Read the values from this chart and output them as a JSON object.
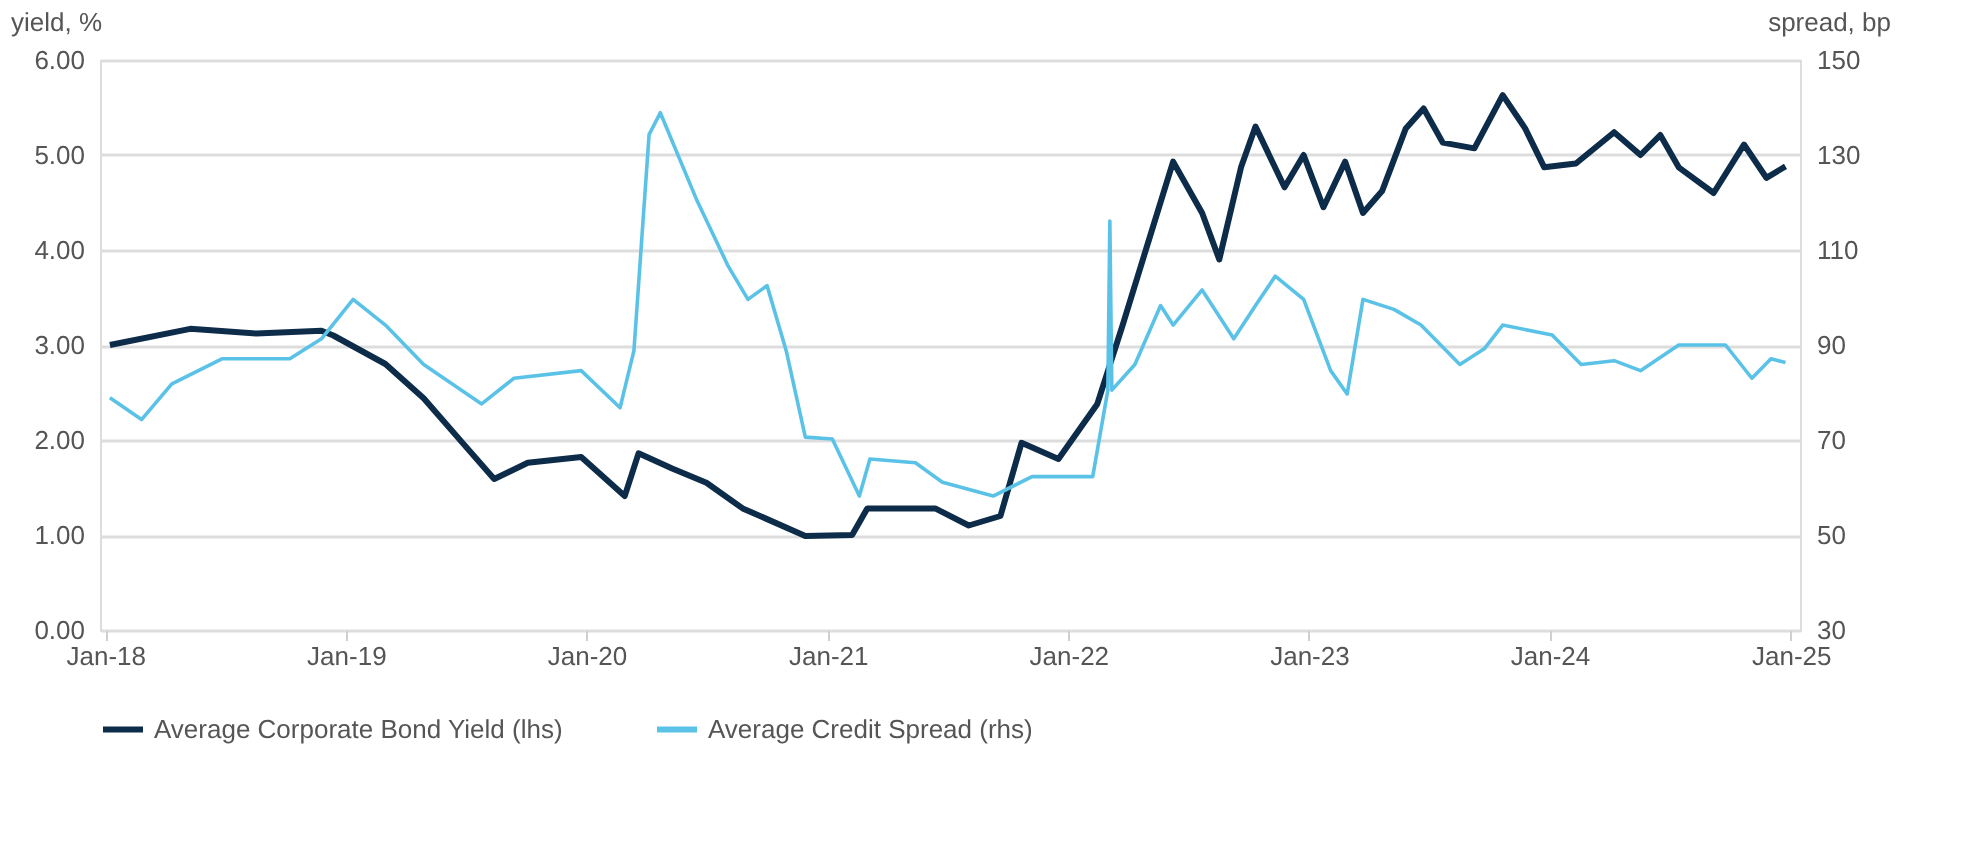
{
  "chart_data": {
    "type": "line",
    "ylabel": "yield, %",
    "y2label": "spread, bp",
    "xlim": [
      "2017-12-24",
      "2025-01-15"
    ],
    "xticks": [
      {
        "value": "2018-01-01",
        "label": "Jan-18"
      },
      {
        "value": "2019-01-01",
        "label": "Jan-19"
      },
      {
        "value": "2020-01-01",
        "label": "Jan-20"
      },
      {
        "value": "2021-01-01",
        "label": "Jan-21"
      },
      {
        "value": "2022-01-01",
        "label": "Jan-22"
      },
      {
        "value": "2023-01-01",
        "label": "Jan-23"
      },
      {
        "value": "2024-01-01",
        "label": "Jan-24"
      },
      {
        "value": "2025-01-01",
        "label": "Jan-25"
      }
    ],
    "ylim": [
      0,
      6
    ],
    "yticks": [
      {
        "value": 0,
        "label": "0.00"
      },
      {
        "value": 1,
        "label": "1.00"
      },
      {
        "value": 2,
        "label": "2.00"
      },
      {
        "value": 3,
        "label": "3.00"
      },
      {
        "value": 4,
        "label": "4.00"
      },
      {
        "value": 5,
        "label": "5.00"
      },
      {
        "value": 6,
        "label": "6.00"
      }
    ],
    "y2lim": [
      30,
      150
    ],
    "y2ticks": [
      30,
      50,
      70,
      90,
      110,
      130,
      150
    ],
    "grid": "y",
    "legend": "bottom",
    "line_style": "solid",
    "marker": "none",
    "series": [
      {
        "name": "Average Corporate Bond Yield (lhs)",
        "color": "#0d2c4a",
        "axis": "y",
        "x": [
          "2018-01-08",
          "2018-05-10",
          "2018-08-18",
          "2018-11-25",
          "2018-12-13",
          "2019-03-02",
          "2019-04-29",
          "2019-06-27",
          "2019-08-14",
          "2019-10-04",
          "2019-12-24",
          "2020-02-28",
          "2020-03-20",
          "2020-05-10",
          "2020-07-01",
          "2020-08-25",
          "2020-11-28",
          "2021-02-07",
          "2021-03-02",
          "2021-06-13",
          "2021-08-03",
          "2021-09-20",
          "2021-10-22",
          "2021-12-17",
          "2022-02-14",
          "2022-03-24",
          "2022-05-03",
          "2022-06-09",
          "2022-07-23",
          "2022-08-18",
          "2022-09-20",
          "2022-10-12",
          "2022-11-25",
          "2022-12-24",
          "2023-01-23",
          "2023-02-25",
          "2023-03-24",
          "2023-04-22",
          "2023-05-28",
          "2023-06-24",
          "2023-07-23",
          "2023-09-09",
          "2023-10-22",
          "2023-11-25",
          "2023-12-24",
          "2024-02-10",
          "2024-04-08",
          "2024-05-18",
          "2024-06-17",
          "2024-07-15",
          "2024-09-06",
          "2024-10-22",
          "2024-11-25",
          "2024-12-24"
        ],
        "values": [
          3.0,
          3.17,
          3.12,
          3.15,
          3.1,
          2.8,
          2.44,
          1.97,
          1.59,
          1.76,
          1.82,
          1.41,
          1.86,
          1.7,
          1.55,
          1.28,
          0.99,
          1.0,
          1.28,
          1.28,
          1.1,
          1.2,
          1.97,
          1.8,
          2.38,
          3.2,
          4.1,
          4.93,
          4.39,
          3.9,
          4.87,
          5.3,
          4.66,
          5.0,
          4.45,
          4.93,
          4.39,
          4.62,
          5.28,
          5.49,
          5.13,
          5.07,
          5.63,
          5.28,
          4.87,
          4.91,
          5.24,
          5.0,
          5.21,
          4.87,
          4.6,
          5.11,
          4.76,
          4.88
        ]
      },
      {
        "name": "Average Credit Spread (rhs)",
        "color": "#5bc2e7",
        "axis": "y2",
        "x": [
          "2018-01-08",
          "2018-02-25",
          "2018-04-12",
          "2018-06-27",
          "2018-10-08",
          "2018-11-25",
          "2019-01-12",
          "2019-03-02",
          "2019-04-29",
          "2019-07-26",
          "2019-09-13",
          "2019-12-24",
          "2020-02-21",
          "2020-03-13",
          "2020-04-05",
          "2020-04-22",
          "2020-06-17",
          "2020-08-03",
          "2020-09-02",
          "2020-10-01",
          "2020-10-30",
          "2020-11-28",
          "2021-01-08",
          "2021-02-18",
          "2021-03-06",
          "2021-05-14",
          "2021-06-24",
          "2021-09-09",
          "2021-11-07",
          "2022-02-07",
          "2022-03-02",
          "2022-03-05",
          "2022-03-08",
          "2022-04-12",
          "2022-05-21",
          "2022-06-09",
          "2022-07-23",
          "2022-09-09",
          "2022-10-12",
          "2022-11-11",
          "2022-12-24",
          "2023-02-03",
          "2023-02-28",
          "2023-03-24",
          "2023-05-10",
          "2023-06-20",
          "2023-08-18",
          "2023-09-24",
          "2023-10-22",
          "2024-01-05",
          "2024-02-18",
          "2024-04-08",
          "2024-05-18",
          "2024-07-15",
          "2024-09-24",
          "2024-11-03",
          "2024-12-02",
          "2024-12-24"
        ],
        "values": [
          78.9,
          74.3,
          81.8,
          87.1,
          87.1,
          91.3,
          99.6,
          94.2,
          85.9,
          77.6,
          83,
          84.6,
          76.8,
          88.8,
          134.3,
          138.9,
          120.3,
          106.6,
          99.6,
          102.5,
          88.8,
          70.6,
          70.2,
          58.2,
          66,
          65.2,
          61.1,
          58.2,
          62.3,
          62.3,
          80.5,
          116.1,
          80.5,
          85.9,
          98.3,
          94.2,
          101.6,
          91.3,
          98.3,
          104.5,
          99.6,
          84.6,
          79.7,
          99.6,
          97.5,
          94.2,
          85.9,
          89.2,
          94.2,
          92.1,
          85.9,
          86.7,
          84.6,
          90,
          90,
          83,
          87.1,
          86.3
        ]
      }
    ]
  }
}
